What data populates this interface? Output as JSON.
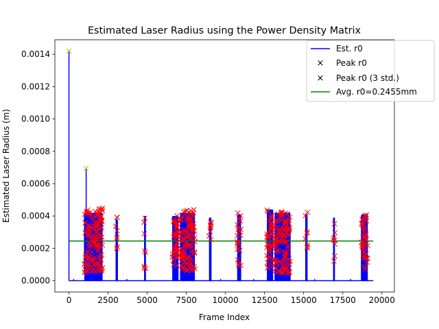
{
  "chart_data": {
    "type": "line",
    "title": "Estimated Laser Radius using the Power Density Matrix",
    "xlabel": "Frame Index",
    "ylabel": "Estimated Laser Radius (m)",
    "xlim": [
      -900,
      20800
    ],
    "ylim": [
      -7e-05,
      0.00149
    ],
    "xticks": [
      0,
      2500,
      5000,
      7500,
      10000,
      12500,
      15000,
      17500,
      20000
    ],
    "xtick_labels": [
      "0",
      "2500",
      "5000",
      "7500",
      "10000",
      "12500",
      "15000",
      "17500",
      "20000"
    ],
    "yticks": [
      0.0,
      0.0002,
      0.0004,
      0.0006,
      0.0008,
      0.001,
      0.0012,
      0.0014
    ],
    "ytick_labels": [
      "0.0000",
      "0.0002",
      "0.0004",
      "0.0006",
      "0.0008",
      "0.0010",
      "0.0012",
      "0.0014"
    ],
    "grid": false,
    "legend_position": "top-right",
    "series": [
      {
        "name": "Est. r0",
        "color": "#0000ff",
        "baseline": 0.0,
        "spikes": [
          {
            "x": 0,
            "y": 0.00142
          },
          {
            "x": 1100,
            "y": 0.00069
          },
          {
            "x": 300,
            "y": 1e-05
          },
          {
            "x": 3700,
            "y": 1e-05
          },
          {
            "x": 9700,
            "y": 1e-05
          },
          {
            "x": 11800,
            "y": 1e-05
          },
          {
            "x": 15700,
            "y": 1e-05
          },
          {
            "x": 18000,
            "y": 1e-05
          }
        ],
        "dense_blocks": [
          {
            "x0": 980,
            "x1": 2150,
            "ymin": 5e-05,
            "ymax": 0.00042
          },
          {
            "x0": 2980,
            "x1": 3120,
            "ymin": 0.0,
            "ymax": 0.00038
          },
          {
            "x0": 4800,
            "x1": 4920,
            "ymin": 0.0,
            "ymax": 0.0004
          },
          {
            "x0": 6600,
            "x1": 7000,
            "ymin": 0.0,
            "ymax": 0.0004
          },
          {
            "x0": 7100,
            "x1": 8050,
            "ymin": 0.0,
            "ymax": 0.00042
          },
          {
            "x0": 8950,
            "x1": 9100,
            "ymin": 0.0,
            "ymax": 0.00039
          },
          {
            "x0": 10750,
            "x1": 11000,
            "ymin": 0.0,
            "ymax": 0.00041
          },
          {
            "x0": 12650,
            "x1": 13050,
            "ymin": 0.0,
            "ymax": 0.00044
          },
          {
            "x0": 13150,
            "x1": 14150,
            "ymin": 0.0,
            "ymax": 0.00042
          },
          {
            "x0": 15100,
            "x1": 15250,
            "ymin": 0.0,
            "ymax": 0.00041
          },
          {
            "x0": 16880,
            "x1": 17000,
            "ymin": 0.0,
            "ymax": 0.00039
          },
          {
            "x0": 18680,
            "x1": 19100,
            "ymin": 0.0,
            "ymax": 0.00041
          }
        ],
        "x_end": 19450
      },
      {
        "name": "Peak r0",
        "color": "#bfbf00",
        "marker": "x",
        "points": [
          {
            "x": 0,
            "y": 0.00142
          },
          {
            "x": 1100,
            "y": 0.000695
          }
        ]
      },
      {
        "name": "Peak r0 (3 std.)",
        "color": "#ff0000",
        "marker": "x",
        "clusters": [
          {
            "x0": 980,
            "x1": 2150,
            "ymin": 5e-05,
            "ymax": 0.00045,
            "count": 140
          },
          {
            "x0": 2980,
            "x1": 3120,
            "ymin": 0.00017,
            "ymax": 0.0004,
            "count": 8
          },
          {
            "x0": 4800,
            "x1": 4920,
            "ymin": 6e-05,
            "ymax": 0.00042,
            "count": 8
          },
          {
            "x0": 6600,
            "x1": 7000,
            "ymin": 9e-05,
            "ymax": 0.00041,
            "count": 40
          },
          {
            "x0": 7100,
            "x1": 8050,
            "ymin": 6e-05,
            "ymax": 0.00044,
            "count": 110
          },
          {
            "x0": 8950,
            "x1": 9100,
            "ymin": 0.00022,
            "ymax": 0.00041,
            "count": 8
          },
          {
            "x0": 10750,
            "x1": 11000,
            "ymin": 9e-05,
            "ymax": 0.00043,
            "count": 22
          },
          {
            "x0": 12650,
            "x1": 13050,
            "ymin": 7e-05,
            "ymax": 0.00046,
            "count": 40
          },
          {
            "x0": 13150,
            "x1": 14150,
            "ymin": 4e-05,
            "ymax": 0.00043,
            "count": 110
          },
          {
            "x0": 15100,
            "x1": 15250,
            "ymin": 0.00015,
            "ymax": 0.00043,
            "count": 8
          },
          {
            "x0": 16880,
            "x1": 17000,
            "ymin": 0.00011,
            "ymax": 0.00039,
            "count": 8
          },
          {
            "x0": 18680,
            "x1": 19100,
            "ymin": 7e-05,
            "ymax": 0.00041,
            "count": 40
          }
        ]
      },
      {
        "name": "Avg. r0=0.2455mm",
        "color": "#008000",
        "type": "hline",
        "y": 0.0002455,
        "x0": 0,
        "x1": 19450
      }
    ]
  }
}
